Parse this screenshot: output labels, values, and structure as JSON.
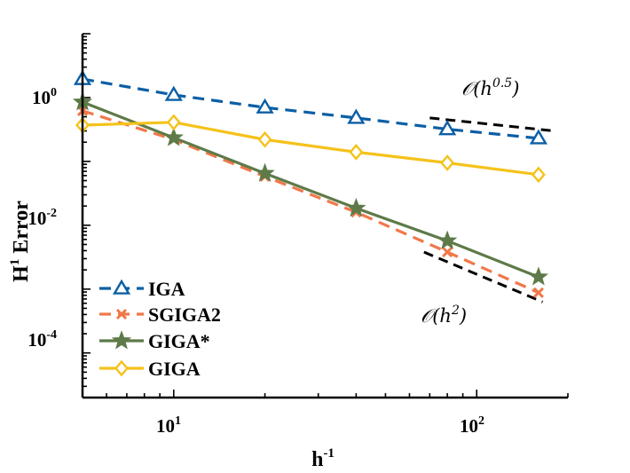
{
  "chart_data": {
    "type": "line",
    "scale": {
      "x": "log",
      "y": "log"
    },
    "xlabel": "h",
    "xlabel_sup": "-1",
    "ylabel_prefix": "H",
    "ylabel_sup": "1",
    "ylabel_suffix": " Error",
    "xlim": [
      5,
      200
    ],
    "ylim": [
      2e-05,
      10
    ],
    "x_ticks": [
      {
        "value": 10,
        "base": "10",
        "exp": "1"
      },
      {
        "value": 100,
        "base": "10",
        "exp": "2"
      }
    ],
    "y_ticks": [
      {
        "value": 1,
        "base": "10",
        "exp": "0"
      },
      {
        "value": 0.01,
        "base": "10",
        "exp": "-2"
      },
      {
        "value": 0.0001,
        "base": "10",
        "exp": "-4"
      }
    ],
    "x": [
      5,
      10,
      20,
      40,
      80,
      160
    ],
    "series": [
      {
        "name": "IGA",
        "color": "#0b5fa5",
        "dash": "dashed",
        "marker": "triangle",
        "values": [
          1.95,
          1.1,
          0.7,
          0.48,
          0.32,
          0.23
        ]
      },
      {
        "name": "SGIGA2",
        "color": "#f0784a",
        "dash": "dashed",
        "marker": "x",
        "values": [
          0.62,
          0.22,
          0.058,
          0.016,
          0.0038,
          0.00088
        ]
      },
      {
        "name": "GIGA*",
        "color": "#5e7a48",
        "dash": "solid",
        "marker": "star",
        "values": [
          0.85,
          0.235,
          0.065,
          0.0185,
          0.0057,
          0.00155
        ]
      },
      {
        "name": "GIGA",
        "color": "#f5c21a",
        "dash": "solid",
        "marker": "diamond",
        "values": [
          0.37,
          0.41,
          0.22,
          0.14,
          0.095,
          0.062
        ]
      }
    ],
    "reference_lines": [
      {
        "label": "O(h^0.5)",
        "text": "𝒪(h",
        "sup": "0.5",
        "close": ")",
        "x": [
          70,
          180
        ],
        "y": [
          0.48,
          0.3
        ]
      },
      {
        "label": "O(h^2)",
        "text": "𝒪(h",
        "sup": "2",
        "close": ")",
        "x": [
          67,
          165
        ],
        "y": [
          0.0038,
          0.00063
        ]
      }
    ],
    "legend_position": "bottom-left"
  }
}
